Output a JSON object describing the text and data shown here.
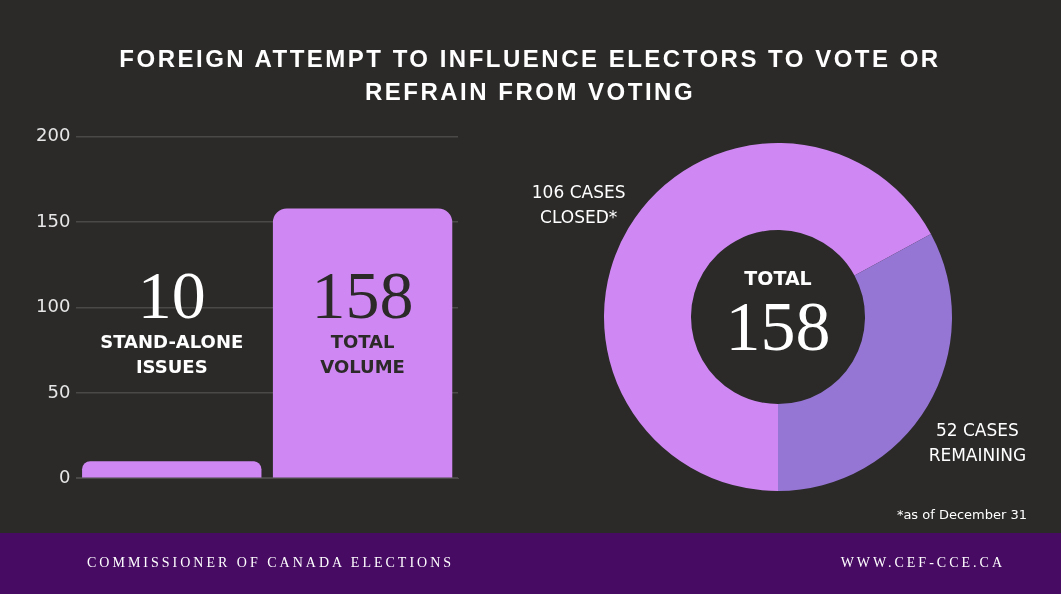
{
  "chart_data": [
    {
      "type": "bar",
      "title": "FOREIGN ATTEMPT TO INFLUENCE ELECTORS TO VOTE OR REFRAIN FROM VOTING",
      "categories": [
        "STAND-ALONE ISSUES",
        "TOTAL VOLUME"
      ],
      "values": [
        10,
        158
      ],
      "color": "#cf88f3",
      "ylim": [
        0,
        200
      ],
      "yticks": [
        0,
        50,
        100,
        150,
        200
      ],
      "grid": "y",
      "data_labels": true,
      "legend": false,
      "annotations": [
        "COMMISSIONER OF CANADA ELECTIONS",
        "WWW.CEF-CCE.CA"
      ]
    },
    {
      "type": "donut",
      "categories": [
        "106 CASES CLOSED*",
        "52 CASES REMAINING"
      ],
      "values": [
        106,
        52
      ],
      "colors": [
        "#cf88f3",
        "#9676d4"
      ],
      "legend": false,
      "annotations": [
        "TOTAL",
        "158",
        "*as of December 31"
      ]
    }
  ]
}
